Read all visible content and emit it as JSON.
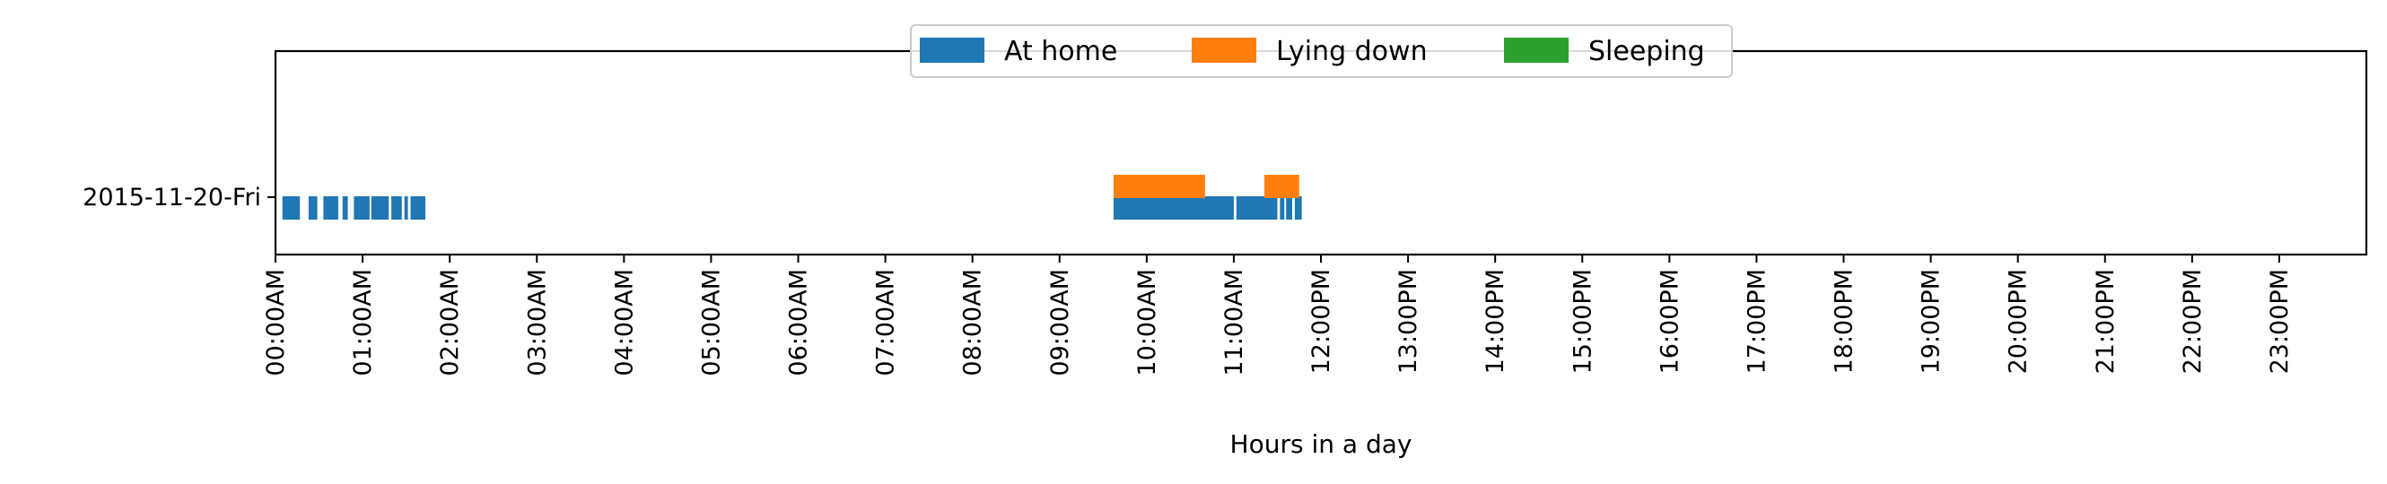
{
  "chart_data": {
    "type": "timeline",
    "xlabel": "Hours in a day",
    "xlim": [
      0,
      24
    ],
    "x_ticks": [
      "00:00AM",
      "01:00AM",
      "02:00AM",
      "03:00AM",
      "04:00AM",
      "05:00AM",
      "06:00AM",
      "07:00AM",
      "08:00AM",
      "09:00AM",
      "10:00AM",
      "11:00AM",
      "12:00PM",
      "13:00PM",
      "14:00PM",
      "15:00PM",
      "16:00PM",
      "17:00PM",
      "18:00PM",
      "19:00PM",
      "20:00PM",
      "21:00PM",
      "22:00PM",
      "23:00PM"
    ],
    "categories": [
      "2015-11-20-Fri"
    ],
    "legend": {
      "placement": "top-center"
    },
    "series": [
      {
        "name": "At home",
        "color": "#1f77b4",
        "intervals": [
          [
            0.08,
            0.28
          ],
          [
            0.38,
            0.48
          ],
          [
            0.55,
            0.72
          ],
          [
            0.77,
            0.83
          ],
          [
            0.9,
            1.08
          ],
          [
            1.1,
            1.3
          ],
          [
            1.33,
            1.45
          ],
          [
            1.48,
            1.52
          ],
          [
            1.55,
            1.72
          ],
          [
            9.62,
            11.0
          ],
          [
            11.03,
            11.5
          ],
          [
            11.53,
            11.58
          ],
          [
            11.6,
            11.67
          ],
          [
            11.7,
            11.78
          ]
        ]
      },
      {
        "name": "Lying down",
        "color": "#ff7f0e",
        "intervals": [
          [
            9.62,
            10.67
          ],
          [
            11.35,
            11.75
          ]
        ]
      },
      {
        "name": "Sleeping",
        "color": "#2ca02c",
        "intervals": []
      }
    ]
  }
}
